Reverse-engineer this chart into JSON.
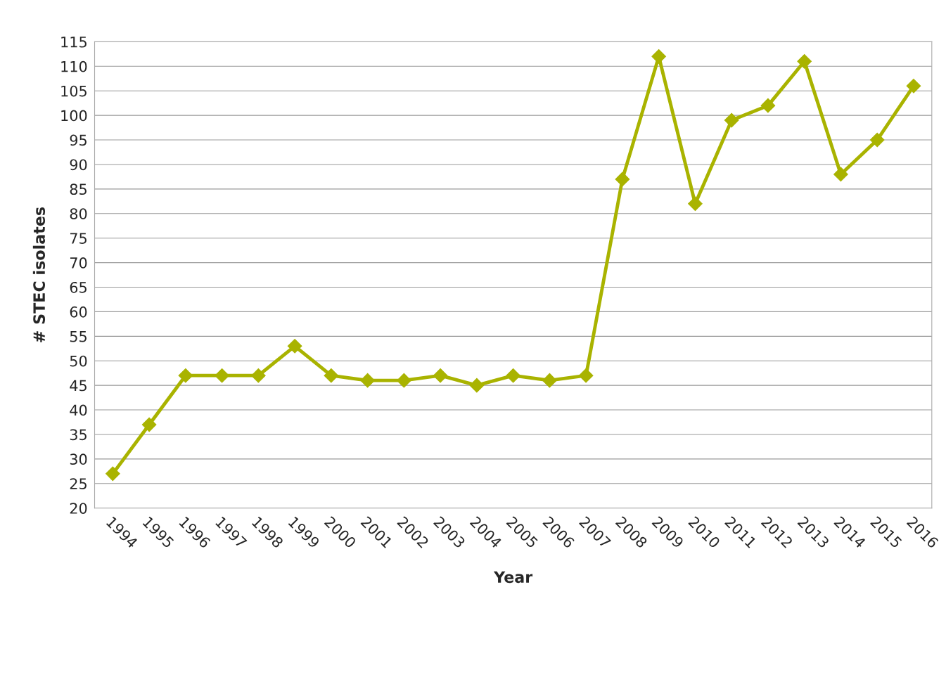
{
  "chart_data": {
    "type": "line",
    "xlabel": "Year",
    "ylabel": "# STEC isolates",
    "categories": [
      "1994",
      "1995",
      "1996",
      "1997",
      "1998",
      "1999",
      "2000",
      "2001",
      "2002",
      "2003",
      "2004",
      "2005",
      "2006",
      "2007",
      "2008",
      "2009",
      "2010",
      "2011",
      "2012",
      "2013",
      "2014",
      "2015",
      "2016"
    ],
    "series": [
      {
        "color": "#a9b300",
        "values": [
          27,
          37,
          47,
          47,
          47,
          53,
          47,
          46,
          46,
          47,
          45,
          47,
          46,
          47,
          87,
          112,
          82,
          99,
          102,
          111,
          88,
          95,
          106
        ]
      }
    ],
    "ylim": [
      20,
      115
    ],
    "yticks": [
      20,
      25,
      30,
      35,
      40,
      45,
      50,
      55,
      60,
      65,
      70,
      75,
      80,
      85,
      90,
      95,
      100,
      105,
      110,
      115
    ],
    "grid": "y",
    "marker": "diamond",
    "line_style": "solid"
  }
}
